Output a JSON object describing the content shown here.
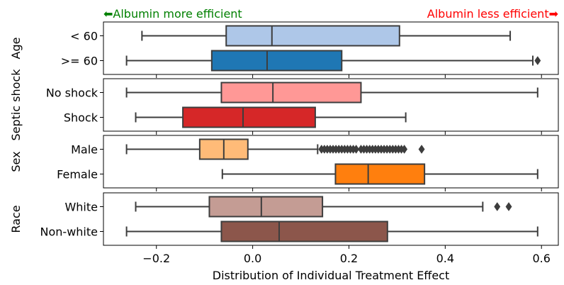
{
  "chart_data": {
    "type": "boxplot",
    "orientation": "horizontal",
    "xlabel": "Distribution of Individual Treatment Effect",
    "xlim": [
      -0.31,
      0.635
    ],
    "xticks": [
      -0.2,
      0.0,
      0.2,
      0.4,
      0.6
    ],
    "xtick_labels": [
      "−0.2",
      "0.0",
      "0.2",
      "0.4",
      "0.6"
    ],
    "grid": false,
    "annotations": [
      {
        "text": "⬅Albumin more efficient",
        "color": "#008000",
        "position": "top-left"
      },
      {
        "text": "Albumin less efficient➡",
        "color": "#ff0000",
        "position": "top-right"
      }
    ],
    "panels": [
      {
        "ylabel": "Age",
        "boxes": [
          {
            "label": "< 60",
            "color": "#aec7e8",
            "whisker_low": -0.23,
            "q1": -0.055,
            "median": 0.04,
            "q3": 0.305,
            "whisker_high": 0.535,
            "outliers": []
          },
          {
            "label": ">= 60",
            "color": "#1f77b4",
            "whisker_low": -0.262,
            "q1": -0.085,
            "median": 0.03,
            "q3": 0.185,
            "whisker_high": 0.582,
            "outliers": [
              0.592
            ]
          }
        ]
      },
      {
        "ylabel": "Septic shock",
        "boxes": [
          {
            "label": "No shock",
            "color": "#ff9896",
            "whisker_low": -0.262,
            "q1": -0.065,
            "median": 0.042,
            "q3": 0.225,
            "whisker_high": 0.592,
            "outliers": []
          },
          {
            "label": "Shock",
            "color": "#d62728",
            "whisker_low": -0.243,
            "q1": -0.145,
            "median": -0.02,
            "q3": 0.13,
            "whisker_high": 0.318,
            "outliers": []
          }
        ]
      },
      {
        "ylabel": "Sex",
        "boxes": [
          {
            "label": "Male",
            "color": "#ffbb78",
            "whisker_low": -0.262,
            "q1": -0.11,
            "median": -0.06,
            "q3": -0.01,
            "whisker_high": 0.135,
            "outliers": [
              0.143,
              0.149,
              0.155,
              0.161,
              0.167,
              0.173,
              0.179,
              0.185,
              0.191,
              0.197,
              0.203,
              0.209,
              0.215,
              0.225,
              0.231,
              0.237,
              0.243,
              0.249,
              0.255,
              0.261,
              0.267,
              0.273,
              0.279,
              0.285,
              0.291,
              0.297,
              0.303,
              0.309,
              0.315,
              0.351
            ]
          },
          {
            "label": "Female",
            "color": "#ff7f0e",
            "whisker_low": -0.063,
            "q1": 0.172,
            "median": 0.24,
            "q3": 0.357,
            "whisker_high": 0.592,
            "outliers": []
          }
        ]
      },
      {
        "ylabel": "Race",
        "boxes": [
          {
            "label": "White",
            "color": "#c49c94",
            "whisker_low": -0.243,
            "q1": -0.09,
            "median": 0.018,
            "q3": 0.145,
            "whisker_high": 0.478,
            "outliers": [
              0.508,
              0.532
            ]
          },
          {
            "label": "Non-white",
            "color": "#8c564b",
            "whisker_low": -0.262,
            "q1": -0.065,
            "median": 0.055,
            "q3": 0.28,
            "whisker_high": 0.592,
            "outliers": []
          }
        ]
      }
    ]
  }
}
